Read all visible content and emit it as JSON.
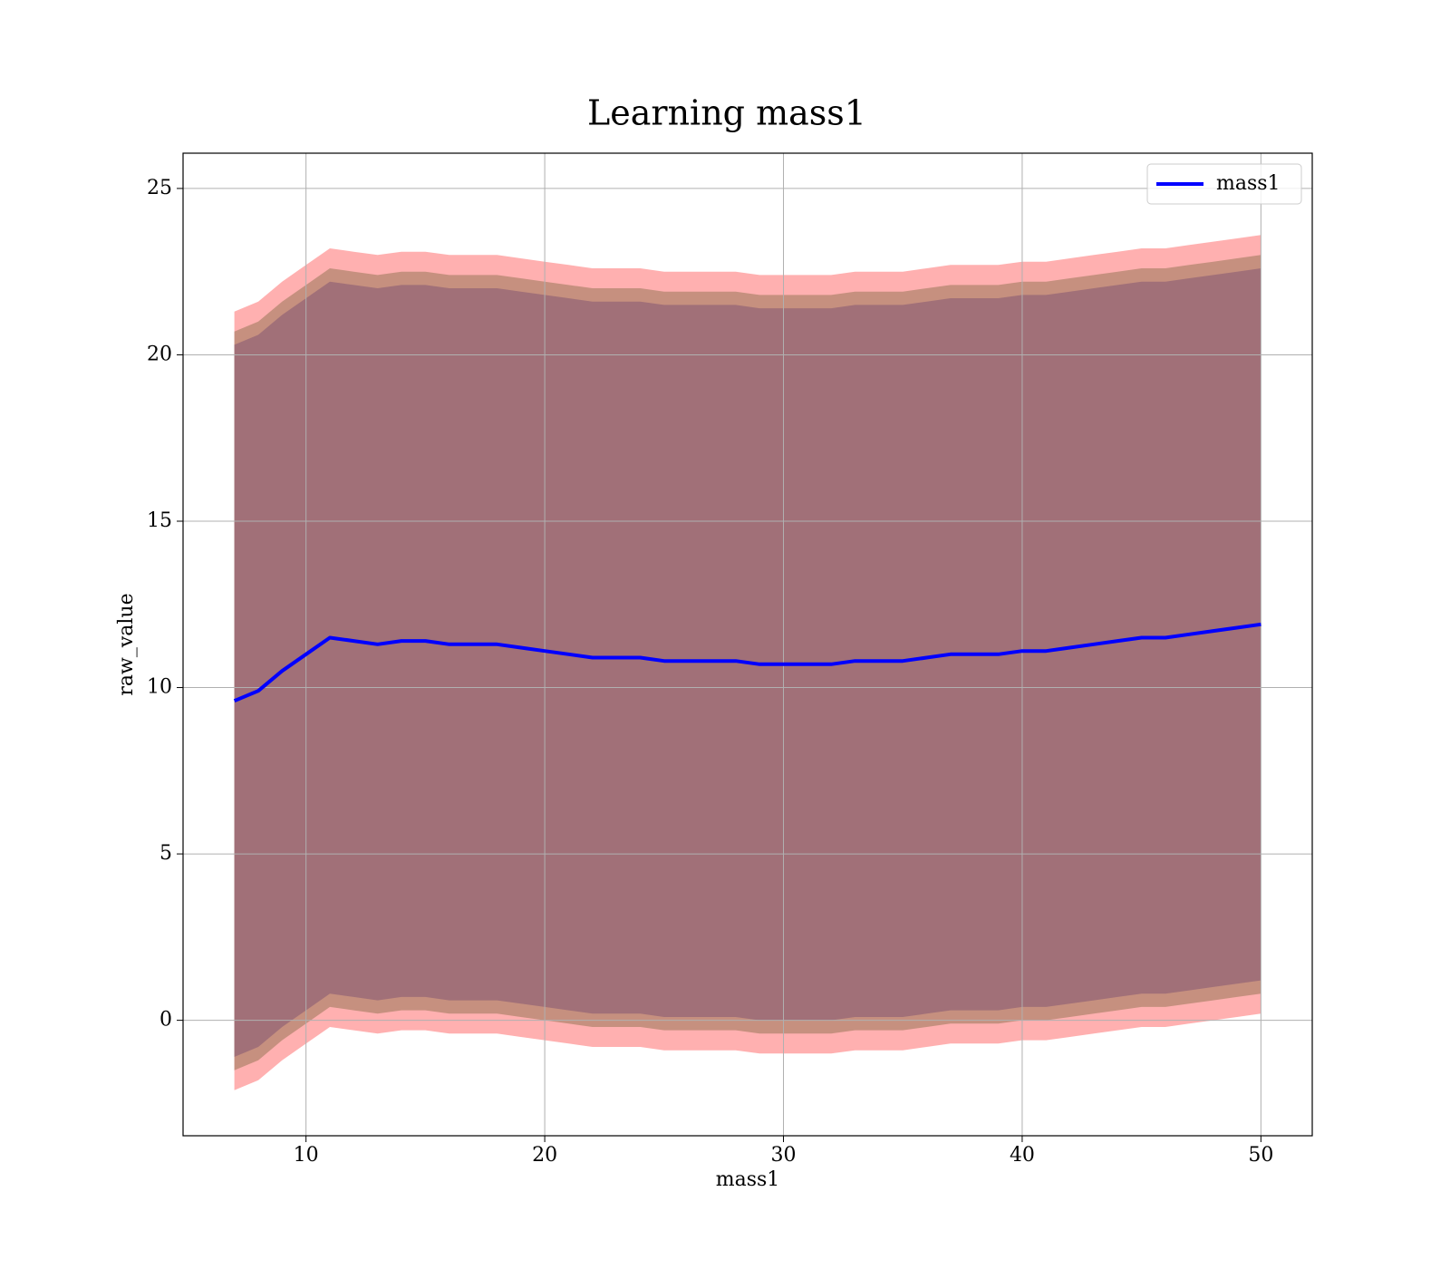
{
  "chart_data": {
    "type": "line",
    "title": "Learning mass1",
    "xlabel": "mass1",
    "ylabel": "raw_value",
    "x": [
      7,
      8,
      9,
      10,
      11,
      12,
      13,
      14,
      15,
      16,
      17,
      18,
      19,
      20,
      21,
      22,
      23,
      24,
      25,
      26,
      27,
      28,
      29,
      30,
      31,
      32,
      33,
      34,
      35,
      36,
      37,
      38,
      39,
      40,
      41,
      42,
      43,
      44,
      45,
      46,
      47,
      48,
      49,
      50
    ],
    "series": [
      {
        "name": "mass1",
        "color": "#0000ff",
        "values": [
          9.6,
          9.9,
          10.5,
          11.0,
          11.5,
          11.4,
          11.3,
          11.4,
          11.4,
          11.3,
          11.3,
          11.3,
          11.2,
          11.1,
          11.0,
          10.9,
          10.9,
          10.9,
          10.8,
          10.8,
          10.8,
          10.8,
          10.7,
          10.7,
          10.7,
          10.7,
          10.8,
          10.8,
          10.8,
          10.9,
          11.0,
          11.0,
          11.0,
          11.1,
          11.1,
          11.2,
          11.3,
          11.4,
          11.5,
          11.5,
          11.6,
          11.7,
          11.8,
          11.9
        ]
      }
    ],
    "bands": [
      {
        "color": "#ffb0b0",
        "upper": [
          21.3,
          21.6,
          22.2,
          22.7,
          23.2,
          23.1,
          23.0,
          23.1,
          23.1,
          23.0,
          23.0,
          23.0,
          22.9,
          22.8,
          22.7,
          22.6,
          22.6,
          22.6,
          22.5,
          22.5,
          22.5,
          22.5,
          22.4,
          22.4,
          22.4,
          22.4,
          22.5,
          22.5,
          22.5,
          22.6,
          22.7,
          22.7,
          22.7,
          22.8,
          22.8,
          22.9,
          23.0,
          23.1,
          23.2,
          23.2,
          23.3,
          23.4,
          23.5,
          23.6
        ],
        "lower": [
          -2.1,
          -1.8,
          -1.2,
          -0.7,
          -0.2,
          -0.3,
          -0.4,
          -0.3,
          -0.3,
          -0.4,
          -0.4,
          -0.4,
          -0.5,
          -0.6,
          -0.7,
          -0.8,
          -0.8,
          -0.8,
          -0.9,
          -0.9,
          -0.9,
          -0.9,
          -1.0,
          -1.0,
          -1.0,
          -1.0,
          -0.9,
          -0.9,
          -0.9,
          -0.8,
          -0.7,
          -0.7,
          -0.7,
          -0.6,
          -0.6,
          -0.5,
          -0.4,
          -0.3,
          -0.2,
          -0.2,
          -0.1,
          0.0,
          0.1,
          0.2
        ]
      },
      {
        "color": "#c6907f",
        "upper": [
          20.7,
          21.0,
          21.6,
          22.1,
          22.6,
          22.5,
          22.4,
          22.5,
          22.5,
          22.4,
          22.4,
          22.4,
          22.3,
          22.2,
          22.1,
          22.0,
          22.0,
          22.0,
          21.9,
          21.9,
          21.9,
          21.9,
          21.8,
          21.8,
          21.8,
          21.8,
          21.9,
          21.9,
          21.9,
          22.0,
          22.1,
          22.1,
          22.1,
          22.2,
          22.2,
          22.3,
          22.4,
          22.5,
          22.6,
          22.6,
          22.7,
          22.8,
          22.9,
          23.0
        ],
        "lower": [
          -1.5,
          -1.2,
          -0.6,
          -0.1,
          0.4,
          0.3,
          0.2,
          0.3,
          0.3,
          0.2,
          0.2,
          0.2,
          0.1,
          0.0,
          -0.1,
          -0.2,
          -0.2,
          -0.2,
          -0.3,
          -0.3,
          -0.3,
          -0.3,
          -0.4,
          -0.4,
          -0.4,
          -0.4,
          -0.3,
          -0.3,
          -0.3,
          -0.2,
          -0.1,
          -0.1,
          -0.1,
          0.0,
          0.0,
          0.1,
          0.2,
          0.3,
          0.4,
          0.4,
          0.5,
          0.6,
          0.7,
          0.8
        ]
      },
      {
        "color": "#a17078",
        "upper": [
          20.3,
          20.6,
          21.2,
          21.7,
          22.2,
          22.1,
          22.0,
          22.1,
          22.1,
          22.0,
          22.0,
          22.0,
          21.9,
          21.8,
          21.7,
          21.6,
          21.6,
          21.6,
          21.5,
          21.5,
          21.5,
          21.5,
          21.4,
          21.4,
          21.4,
          21.4,
          21.5,
          21.5,
          21.5,
          21.6,
          21.7,
          21.7,
          21.7,
          21.8,
          21.8,
          21.9,
          22.0,
          22.1,
          22.2,
          22.2,
          22.3,
          22.4,
          22.5,
          22.6
        ],
        "lower": [
          -1.1,
          -0.8,
          -0.2,
          0.3,
          0.8,
          0.7,
          0.6,
          0.7,
          0.7,
          0.6,
          0.6,
          0.6,
          0.5,
          0.4,
          0.3,
          0.2,
          0.2,
          0.2,
          0.1,
          0.1,
          0.1,
          0.1,
          0.0,
          0.0,
          0.0,
          0.0,
          0.1,
          0.1,
          0.1,
          0.2,
          0.3,
          0.3,
          0.3,
          0.4,
          0.4,
          0.5,
          0.6,
          0.7,
          0.8,
          0.8,
          0.9,
          1.0,
          1.1,
          1.2
        ]
      }
    ],
    "xlim": [
      4.85,
      52.15
    ],
    "ylim": [
      -3.47,
      26.06
    ],
    "xticks": [
      10,
      20,
      30,
      40,
      50
    ],
    "yticks": [
      0,
      5,
      10,
      15,
      20,
      25
    ],
    "grid": true,
    "legend": "upper right"
  }
}
